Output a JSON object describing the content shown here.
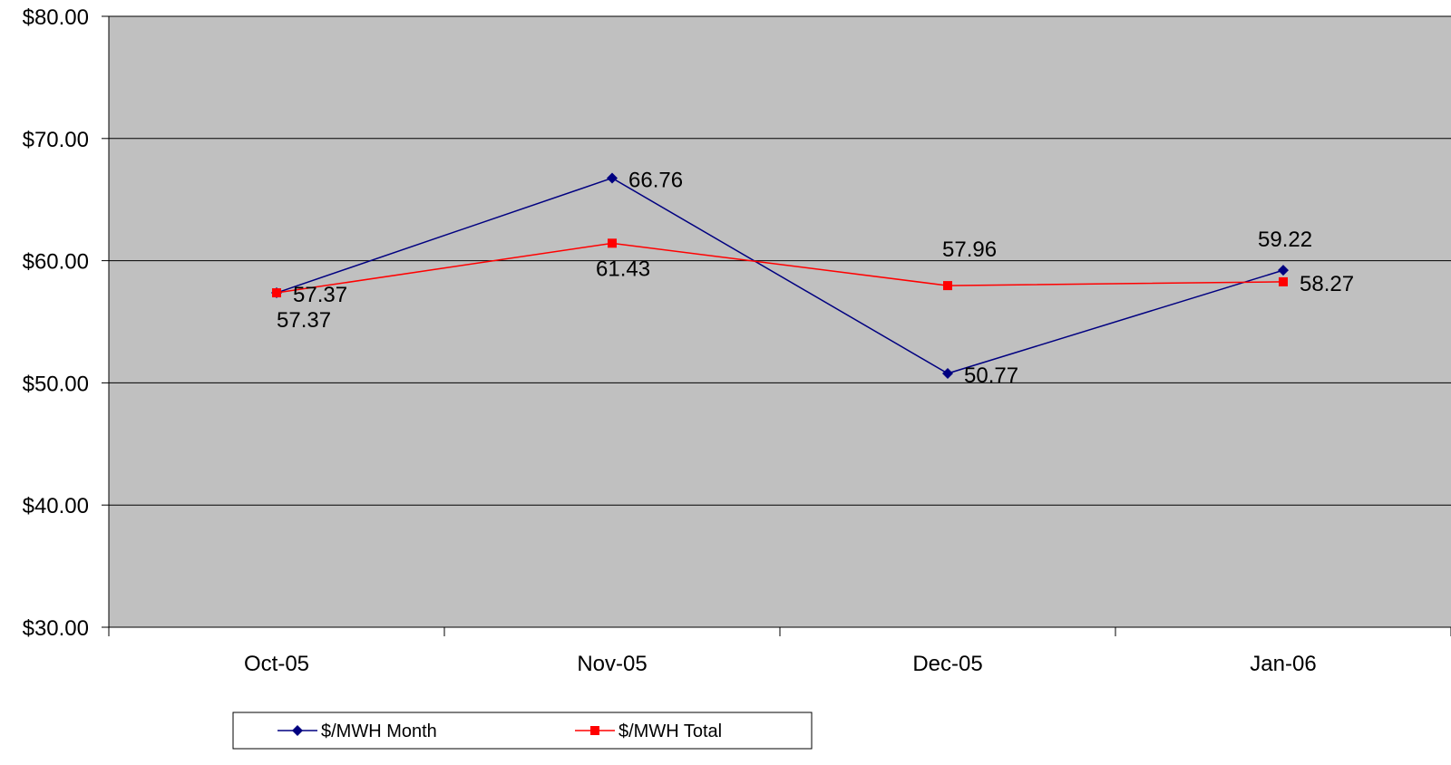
{
  "colors": {
    "plot_background": "#C0C0C0",
    "gridline": "#000000",
    "axis": "#000000",
    "series_month": "#000080",
    "series_total": "#FF0000"
  },
  "chart_data": {
    "type": "line",
    "categories": [
      "Oct-05",
      "Nov-05",
      "Dec-05",
      "Jan-06"
    ],
    "ylim": [
      30,
      80
    ],
    "y_ticks": [
      30,
      40,
      50,
      60,
      70,
      80
    ],
    "y_tick_labels": [
      "$30.00",
      "$40.00",
      "$50.00",
      "$60.00",
      "$70.00",
      "$80.00"
    ],
    "grid": true,
    "legend_position": "bottom",
    "series": [
      {
        "name": "$/MWH Month",
        "color": "#000080",
        "marker": "diamond",
        "values": [
          57.37,
          66.76,
          50.77,
          59.22
        ],
        "data_labels": [
          "57.37",
          "66.76",
          "50.77",
          "59.22"
        ]
      },
      {
        "name": "$/MWH Total",
        "color": "#FF0000",
        "marker": "square",
        "values": [
          57.37,
          61.43,
          57.96,
          58.27
        ],
        "data_labels": [
          "57.37",
          "61.43",
          "57.96",
          "58.27"
        ]
      }
    ]
  }
}
